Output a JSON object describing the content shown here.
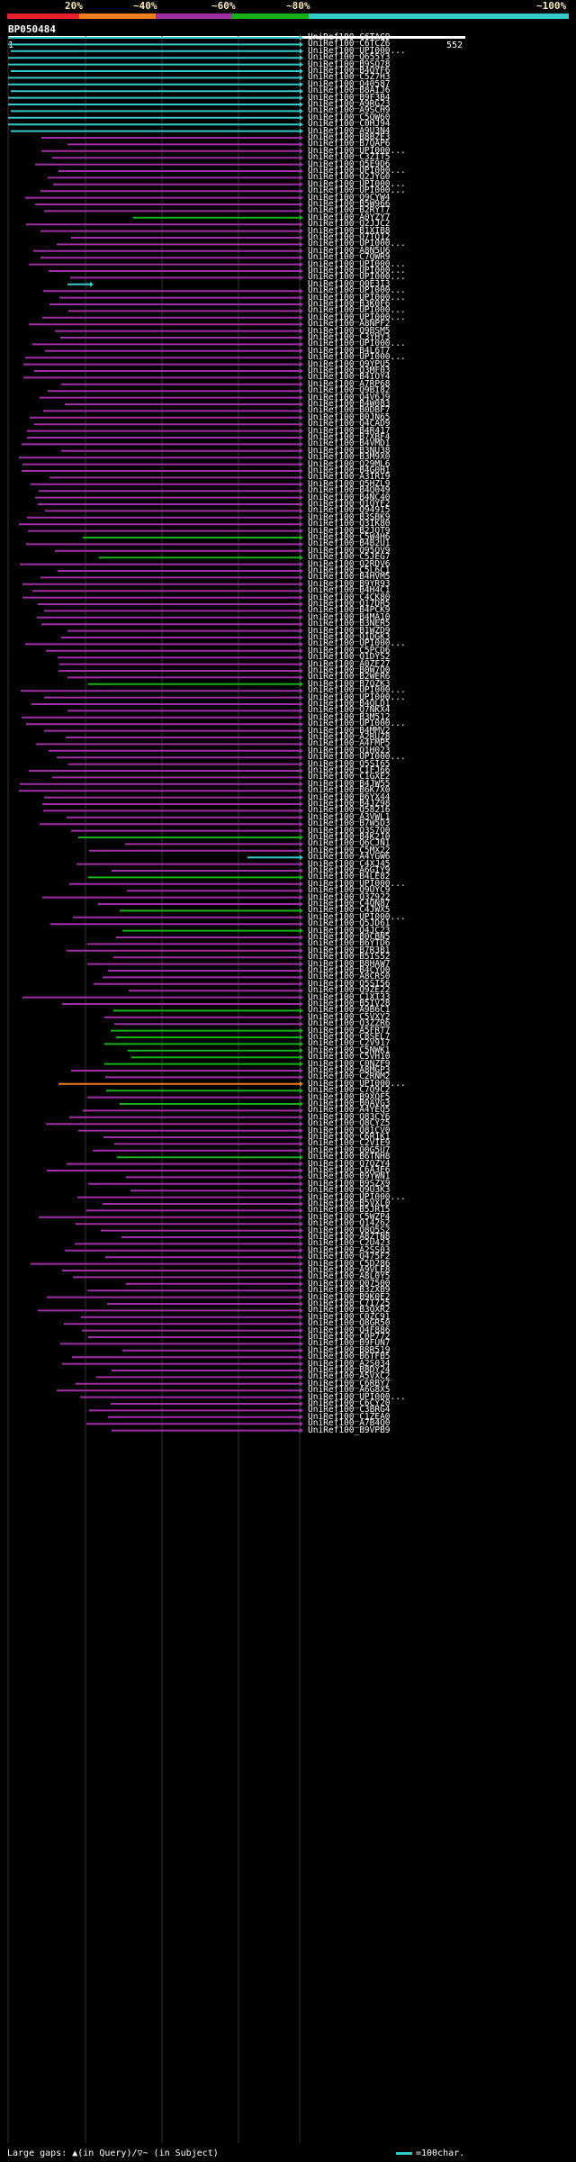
{
  "legend": {
    "labels": [
      "20%",
      "~40%",
      "~60%",
      "~80%",
      "~100%"
    ],
    "colors": [
      "#e8202c",
      "#f07d1e",
      "#a02ea6",
      "#18b018",
      "#36c9c9"
    ]
  },
  "query": {
    "name": "BP050484",
    "start": "1",
    "end": "552"
  },
  "footer": {
    "large_gaps": "Large gaps: ▲(in Query)/▽~ (in Subject)",
    "scale": "=100char."
  },
  "hits": [
    "UniRef100_C6TAG9",
    "UniRef100_C6TCZ6",
    "UniRef100_UPI000...",
    "UniRef100_Q655Y3",
    "UniRef100_B9SQ78",
    "UniRef100_B4QYF6",
    "UniRef100_C5Z7H3",
    "UniRef100_Q40587",
    "UniRef100_B8AIJ6",
    "UniRef100_B9F3B4",
    "UniRef100_A9RG23",
    "UniRef100_A9SCH9",
    "UniRef100_C5QW60",
    "UniRef100_C0HJ94",
    "UniRef100_A9U3N4",
    "UniRef100_B8BZE3",
    "UniRef100_B7QAP6",
    "UniRef100_UPI000...",
    "UniRef100_C3ZIT5",
    "UniRef100_Q5E9D6",
    "UniRef100_UPI000...",
    "UniRef100_Q2JYG0",
    "UniRef100_UPI000...",
    "UniRef100_UPI000...",
    "UniRef100_Q9CYW4",
    "UniRef100_B5W966",
    "UniRef100_B2RYT7",
    "UniRef100_A0YZY7",
    "UniRef100_Q2JJC2",
    "UniRef100_B1XIB8",
    "UniRef100_Q7TQ12",
    "UniRef100_UPI000...",
    "UniRef100_A8N5U6",
    "UniRef100_C7QWR9",
    "UniRef100_UPI000...",
    "UniRef100_UPI000...",
    "UniRef100_UPI000...",
    "UniRef100_Q0E3I3",
    "UniRef100_UPI000...",
    "UniRef100_UPI000...",
    "UniRef100_B3K0F6",
    "UniRef100_UPI000...",
    "UniRef100_UPI000...",
    "UniRef100_A8NPF2",
    "UniRef100_Q9BSM5",
    "UniRef100_C3YHY3",
    "UniRef100_UPI000...",
    "UniRef100_B4L6T7",
    "UniRef100_UPI000...",
    "UniRef100_Q9YPU5",
    "UniRef100_Q3MF03",
    "UniRef100_B4IOY4",
    "UniRef100_A7RP68",
    "UniRef100_Q9BI82",
    "UniRef100_Q4V6J9",
    "UniRef100_B4W083",
    "UniRef100_B0DBF7",
    "UniRef100_B0JN65",
    "UniRef100_Q4CAD9",
    "UniRef100_B4R417",
    "UniRef100_B7XBF4",
    "UniRef100_B4VMD1",
    "UniRef100_B3NU38",
    "UniRef100_B3M9X0",
    "UniRef100_Q29ML6",
    "UniRef100_B4G0H1",
    "UniRef100_A3IRI9",
    "UniRef100_Q5HZL9",
    "UniRef100_B4Q049",
    "UniRef100_B4NC40",
    "UniRef100_Q1QYF2",
    "UniRef100_Q949I5",
    "UniRef100_B3SBK9",
    "UniRef100_Q3IK80",
    "UniRef100_B2JOT9",
    "UniRef100_C5W4H6",
    "UniRef100_B4B2U1",
    "UniRef100_Q95QV9",
    "UniRef100_C5JEG7",
    "UniRef100_Q2RDV6",
    "UniRef100_C5L6C1",
    "UniRef100_B4HVM5",
    "UniRef100_B9YR93",
    "UniRef100_B4H4C1",
    "UniRef100_C4CK80",
    "UniRef100_Q17DR5",
    "UniRef100_B4PCK9",
    "UniRef100_B4MA10",
    "UniRef100_B3NER5",
    "UniRef100_B1WZD9",
    "UniRef100_Q1DGK3",
    "UniRef100_UPI000...",
    "UniRef100_C5PCD6",
    "UniRef100_Q1DYS2",
    "UniRef100_A0ZF27",
    "UniRef100_B0W7Q0",
    "UniRef100_B2WER6",
    "UniRef100_B7QZK3",
    "UniRef100_UPI000...",
    "UniRef100_UPI000...",
    "UniRef100_B4QLD1",
    "UniRef100_Q7NKX4",
    "UniRef100_B3M512",
    "UniRef100_UPI000...",
    "UniRef100_B4MMV2",
    "UniRef100_A2RUZ8",
    "UniRef100_A4FMP5",
    "UniRef100_Q1H023",
    "UniRef100_UPI000...",
    "UniRef100_Q5SI65",
    "UniRef100_C1FJ66",
    "UniRef100_C1GXE2",
    "UniRef100_B4JW55",
    "UniRef100_B6K7X0",
    "UniRef100_B6YX44",
    "UniRef100_B4JZ98",
    "UniRef100_Q58216",
    "UniRef100_A3VWL1",
    "UniRef100_B7W5D3",
    "UniRef100_Q3S7Q0",
    "UniRef100_B4K210",
    "UniRef100_Q6CJN1",
    "UniRef100_C5MX22",
    "UniRef100_A4YGW6",
    "UniRef100_C4XJ45",
    "UniRef100_A6GIY9",
    "UniRef100_B4LE82",
    "UniRef100_UPI000...",
    "UniRef100_Q9UYC9",
    "UniRef100_Q3Z922",
    "UniRef100_C4QN87",
    "UniRef100_C4JWX5",
    "UniRef100_UPI000...",
    "UniRef100_Q5JD61",
    "UniRef100_Q4JC23",
    "UniRef100_B0CBN5",
    "UniRef100_B6YTD6",
    "UniRef100_B7R3B1",
    "UniRef100_B5IS52",
    "UniRef100_B8HAW7",
    "UniRef100_B4CYQ0",
    "UniRef100_A8CRS0",
    "UniRef100_Q5SI56",
    "UniRef100_Q9ZE22",
    "UniRef100_C1XI33",
    "UniRef100_B5IV28",
    "UniRef100_A9B6C1",
    "UniRef100_C5VXY2",
    "UniRef100_Q3ZZR6",
    "UniRef100_A5FRT7",
    "UniRef100_C8SEL7",
    "UniRef100_C2V917",
    "UniRef100_C5NWK1",
    "UniRef100_C5VH10",
    "UniRef100_C0NZF9",
    "UniRef100_A8MGP3",
    "UniRef100_C2RNM2",
    "UniRef100_UPI000...",
    "UniRef100_C7Q9C2",
    "UniRef100_B9XQF5",
    "UniRef100_B0AVG3",
    "UniRef100_A4YEQ5",
    "UniRef100_Q83CY6",
    "UniRef100_Q8CYZ5",
    "UniRef100_Q81CV0",
    "UniRef100_C6R1K1",
    "UniRef100_C2VIE9",
    "UniRef100_Q0G5U7",
    "UniRef100_B6TNH8",
    "UniRef100_Q7QZY4",
    "UniRef100_C6A3E6",
    "UniRef100_B9YWN1",
    "UniRef100_B9SZX9",
    "UniRef100_Q9U3K3",
    "UniRef100_UPI000...",
    "UniRef100_B5VXL0",
    "UniRef100_B5JR15",
    "UniRef100_C5WZP4",
    "UniRef100_Q14262",
    "UniRef100_Q8Q5S2",
    "UniRef100_A8ZTN8",
    "UniRef100_C2U423",
    "UniRef100_A2SS03",
    "UniRef100_Q475F2",
    "UniRef100_C5D286",
    "UniRef100_A9VLE8",
    "UniRef100_A8L0Y5",
    "UniRef100_Q07500",
    "UniRef100_B3ZXB9",
    "UniRef100_B9K0E2",
    "UniRef100_C7I725",
    "UniRef100_B3QXR2",
    "UniRef100_C0ZC91",
    "UniRef100_Q8GR50",
    "UniRef100_Q4F886",
    "UniRef100_C0P772",
    "UniRef100_B9FUN7",
    "UniRef100_B8R519",
    "UniRef100_B6TFB5",
    "UniRef100_A2S034",
    "UniRef100_B8DY24",
    "UniRef100_A5VXC2",
    "UniRef100_C6RBY7",
    "UniRef100_A6G8X5",
    "UniRef100_UPI000...",
    "UniRef100_C6CY20",
    "UniRef100_C3BRG4",
    "UniRef100_C1ZEA0",
    "UniRef100_A7B4Q0",
    "UniRef100_B9VPB9"
  ]
}
